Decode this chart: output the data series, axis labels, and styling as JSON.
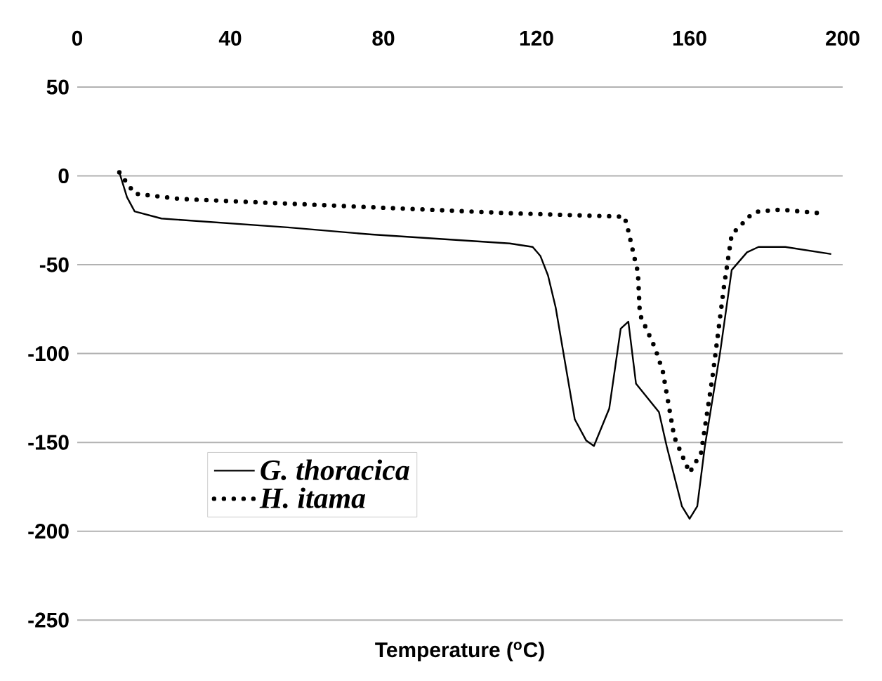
{
  "chart_data": {
    "type": "line",
    "xlabel": "Temperature ($^{o}$C)",
    "xlim": [
      0,
      200
    ],
    "xticks": [
      0,
      40,
      80,
      120,
      160,
      200
    ],
    "ylim": [
      -250,
      50
    ],
    "yticks": [
      -250,
      -200,
      -150,
      -100,
      -50,
      0,
      50
    ],
    "grid": "y",
    "legend": "bottom left",
    "marker": "none",
    "series": [
      {
        "name": "G. thoracica",
        "color": "#000000",
        "line_style": "solid",
        "x": [
          11,
          13,
          15,
          22,
          55,
          77,
          113,
          119,
          121,
          123,
          125,
          130,
          133,
          135,
          139,
          142,
          144,
          146,
          152,
          154,
          158,
          160,
          162,
          164,
          168,
          171,
          175,
          178,
          185,
          197
        ],
        "values": [
          2,
          -12,
          -20,
          -24,
          -29,
          -33,
          -38,
          -40,
          -45,
          -56,
          -74,
          -137,
          -149,
          -152,
          -131,
          -86,
          -82,
          -117,
          -133,
          -152,
          -186,
          -193,
          -186,
          -152,
          -99,
          -53,
          -43,
          -40,
          -40,
          -44
        ]
      },
      {
        "name": "H. itama",
        "color": "#000000",
        "line_style": "dotted",
        "x": [
          11,
          15,
          27,
          70,
          113,
          143,
          144,
          146,
          146.5,
          147,
          151,
          153,
          156,
          160,
          163,
          166,
          169,
          171,
          176,
          178,
          184,
          194
        ],
        "values": [
          2,
          -10,
          -13,
          -17,
          -21,
          -23,
          -31,
          -50,
          -54,
          -78,
          -97,
          -110,
          -147,
          -167,
          -156,
          -113,
          -62,
          -33,
          -22,
          -20,
          -19,
          -21
        ]
      }
    ]
  }
}
